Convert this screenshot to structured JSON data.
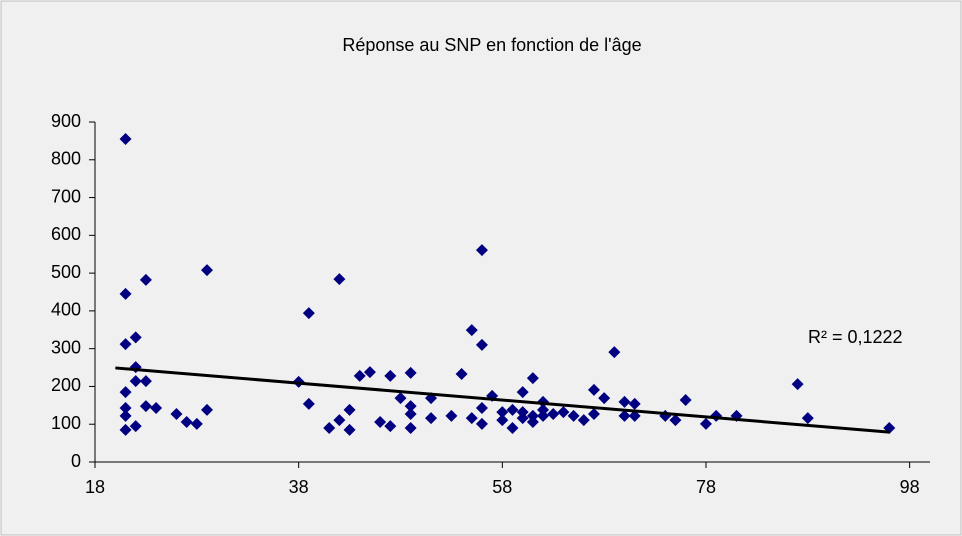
{
  "chart_data": {
    "type": "scatter",
    "title": "Réponse au SNP en fonction de l'âge",
    "series": [
      {
        "color": "#000080",
        "x": [
          21,
          21,
          21,
          21,
          21,
          21,
          21,
          22,
          22,
          22,
          22,
          23,
          23,
          23,
          24,
          26,
          27,
          28,
          29,
          29,
          38,
          39,
          39,
          41,
          42,
          42,
          43,
          43,
          44,
          45,
          46,
          47,
          47,
          48,
          49,
          49,
          49,
          49,
          51,
          51,
          53,
          54,
          55,
          55,
          56,
          56,
          56,
          56,
          57,
          58,
          58,
          59,
          59,
          60,
          60,
          60,
          61,
          61,
          61,
          62,
          62,
          62,
          63,
          64,
          65,
          66,
          67,
          67,
          68,
          69,
          70,
          70,
          71,
          71,
          74,
          75,
          76,
          78,
          79,
          81,
          87,
          88,
          96
        ],
        "values": [
          855,
          445,
          312,
          185,
          143,
          122,
          85,
          330,
          251,
          214,
          95,
          482,
          214,
          148,
          143,
          127,
          106,
          101,
          508,
          138,
          212,
          394,
          154,
          90,
          484,
          111,
          138,
          85,
          228,
          238,
          106,
          228,
          95,
          169,
          236,
          148,
          127,
          90,
          169,
          116,
          122,
          233,
          349,
          116,
          561,
          310,
          143,
          101,
          175,
          132,
          111,
          138,
          90,
          185,
          132,
          116,
          222,
          122,
          106,
          159,
          138,
          122,
          127,
          132,
          122,
          111,
          191,
          127,
          169,
          291,
          159,
          122,
          154,
          122,
          122,
          111,
          164,
          101,
          122,
          122,
          206,
          116,
          90
        ]
      }
    ],
    "trendline": {
      "color": "#000000",
      "x": [
        20,
        96
      ],
      "values": [
        249,
        79
      ],
      "label": "R² = 0,1222"
    },
    "xlim": [
      18,
      100
    ],
    "xticks": [
      18,
      38,
      58,
      78,
      98
    ],
    "ylim": [
      0,
      900
    ],
    "yticks": [
      0,
      100,
      200,
      300,
      400,
      500,
      600,
      700,
      800,
      900
    ],
    "grid": false
  }
}
